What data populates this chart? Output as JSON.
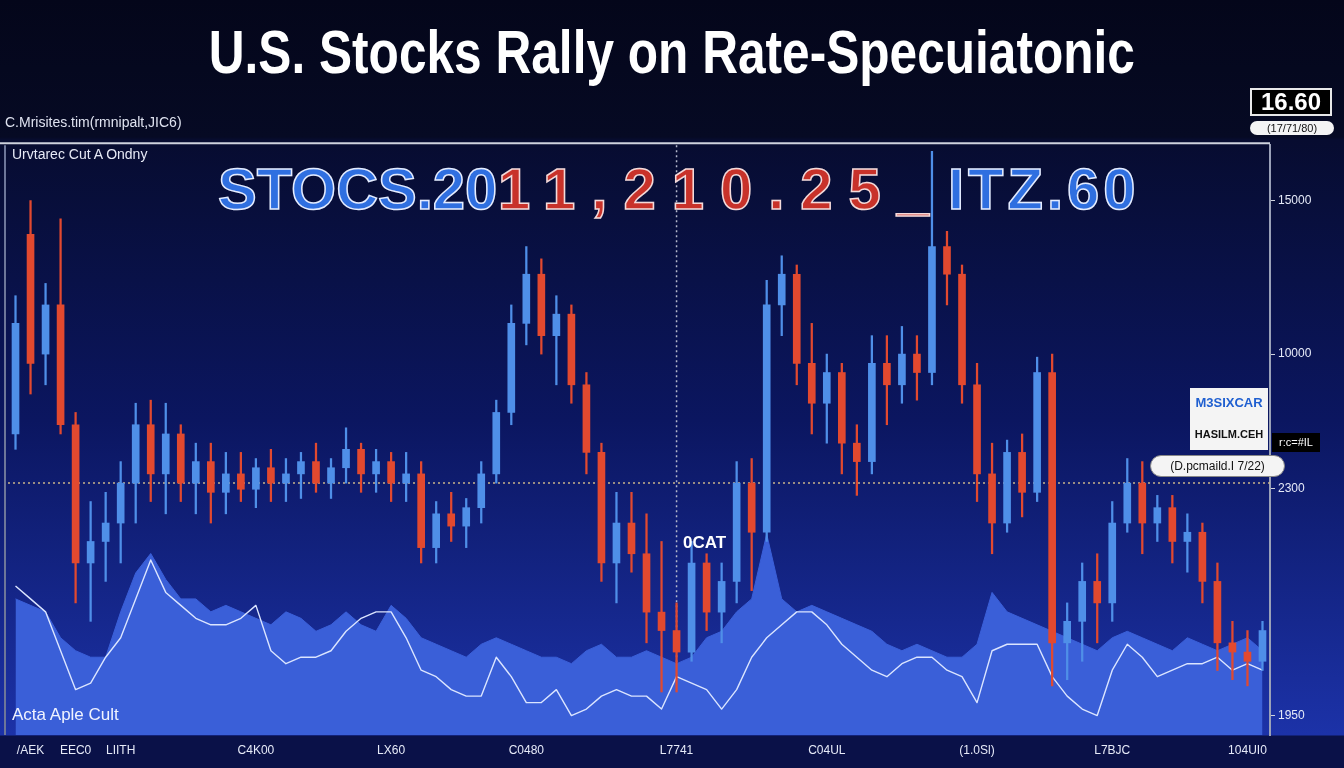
{
  "chart_data": {
    "type": "candlestick",
    "title": "U.S. Stocks Rally on Rate-Specuiatonic",
    "subtitle": "C.Mrisites.tim(rmnipalt,JIC6)",
    "annotations": [
      "16.60",
      "(17/71/80)",
      "Urvtarec Cut A Ondny",
      "STOCS.20",
      "11,210.25_",
      "ITZ.60",
      "0CAT",
      "Acta Aple Cult",
      "r:c=#IL",
      "M3SIXCAR",
      "HASILM.CEH",
      "(D.pcmaild.I 7/22)"
    ],
    "categories": [
      null,
      "/AEK",
      null,
      null,
      "EEC0",
      null,
      null,
      "LIITH",
      null,
      null,
      null,
      null,
      null,
      null,
      null,
      null,
      "C4K00",
      null,
      null,
      null,
      null,
      null,
      null,
      null,
      null,
      "LX60",
      null,
      null,
      null,
      null,
      null,
      null,
      null,
      null,
      "C0480",
      null,
      null,
      null,
      null,
      null,
      null,
      null,
      null,
      null,
      "L7741",
      null,
      null,
      null,
      null,
      null,
      null,
      null,
      null,
      null,
      "C04UL",
      null,
      null,
      null,
      null,
      null,
      null,
      null,
      null,
      null,
      "(1.0Sl)",
      null,
      null,
      null,
      null,
      null,
      null,
      null,
      null,
      "L7BJC",
      null,
      null,
      null,
      null,
      null,
      null,
      null,
      null,
      "104UI0",
      null
    ],
    "ohlc": [
      [
        7400,
        11900,
        6900,
        11000
      ],
      [
        13900,
        15000,
        8700,
        9700
      ],
      [
        10000,
        12300,
        9000,
        11600
      ],
      [
        11600,
        14400,
        7400,
        7700
      ],
      [
        7700,
        8100,
        1900,
        3200
      ],
      [
        3200,
        5200,
        1300,
        3900
      ],
      [
        3900,
        5500,
        2600,
        4500
      ],
      [
        4500,
        6500,
        3200,
        5800
      ],
      [
        5800,
        8400,
        4500,
        7700
      ],
      [
        7700,
        8500,
        5200,
        6100
      ],
      [
        6100,
        8400,
        4800,
        7400
      ],
      [
        7400,
        7700,
        5200,
        5800
      ],
      [
        5800,
        7100,
        4800,
        6500
      ],
      [
        6500,
        7100,
        4500,
        5500
      ],
      [
        5500,
        6800,
        4800,
        6100
      ],
      [
        6100,
        6800,
        5200,
        5600
      ],
      [
        5600,
        6600,
        5000,
        6300
      ],
      [
        6300,
        6900,
        5200,
        5800
      ],
      [
        5800,
        6600,
        5200,
        6100
      ],
      [
        6100,
        6800,
        5300,
        6500
      ],
      [
        6500,
        7100,
        5500,
        5800
      ],
      [
        5800,
        6600,
        5300,
        6300
      ],
      [
        6300,
        7600,
        5800,
        6900
      ],
      [
        6900,
        7100,
        5500,
        6100
      ],
      [
        6100,
        6900,
        5500,
        6500
      ],
      [
        6500,
        6800,
        5200,
        5800
      ],
      [
        5800,
        6800,
        5200,
        6100
      ],
      [
        6100,
        6500,
        3200,
        3700
      ],
      [
        3700,
        5200,
        3200,
        4800
      ],
      [
        4800,
        5500,
        3900,
        4400
      ],
      [
        4400,
        5300,
        3700,
        5000
      ],
      [
        5000,
        6500,
        4500,
        6100
      ],
      [
        6100,
        8500,
        5800,
        8100
      ],
      [
        8100,
        11600,
        7700,
        11000
      ],
      [
        11000,
        13500,
        10300,
        12600
      ],
      [
        12600,
        13100,
        10000,
        10600
      ],
      [
        10600,
        11900,
        9000,
        11300
      ],
      [
        11300,
        11600,
        8400,
        9000
      ],
      [
        9000,
        9400,
        6100,
        6800
      ],
      [
        6800,
        7100,
        2600,
        3200
      ],
      [
        3200,
        5500,
        1900,
        4500
      ],
      [
        4500,
        5500,
        2900,
        3500
      ],
      [
        3500,
        4800,
        600,
        1600
      ],
      [
        1600,
        3900,
        -1000,
        1000
      ],
      [
        1000,
        1900,
        -1000,
        300
      ],
      [
        300,
        3900,
        0,
        3200
      ],
      [
        3200,
        3500,
        1000,
        1600
      ],
      [
        1600,
        3200,
        600,
        2600
      ],
      [
        2600,
        6500,
        1900,
        5800
      ],
      [
        5800,
        6600,
        2300,
        4200
      ],
      [
        4200,
        12400,
        3900,
        11600
      ],
      [
        11600,
        13200,
        10600,
        12600
      ],
      [
        12600,
        12900,
        9000,
        9700
      ],
      [
        9700,
        11000,
        7400,
        8400
      ],
      [
        8400,
        10000,
        7100,
        9400
      ],
      [
        9400,
        9700,
        6100,
        7100
      ],
      [
        7100,
        7700,
        5400,
        6500
      ],
      [
        6500,
        10600,
        6100,
        9700
      ],
      [
        9700,
        10600,
        7700,
        9000
      ],
      [
        9000,
        10900,
        8400,
        10000
      ],
      [
        10000,
        10600,
        8500,
        9400
      ],
      [
        9400,
        16600,
        9000,
        13500
      ],
      [
        13500,
        14000,
        11600,
        12600
      ],
      [
        12600,
        12900,
        8400,
        9000
      ],
      [
        9000,
        9700,
        5200,
        6100
      ],
      [
        6100,
        7100,
        3500,
        4500
      ],
      [
        4500,
        7200,
        4200,
        6800
      ],
      [
        6800,
        7400,
        4700,
        5500
      ],
      [
        5500,
        9900,
        5200,
        9400
      ],
      [
        9400,
        10000,
        -800,
        600
      ],
      [
        600,
        1900,
        -600,
        1300
      ],
      [
        1300,
        3200,
        0,
        2600
      ],
      [
        2600,
        3500,
        600,
        1900
      ],
      [
        1900,
        5200,
        1300,
        4500
      ],
      [
        4500,
        6600,
        4200,
        5800
      ],
      [
        5800,
        6500,
        3500,
        4500
      ],
      [
        4500,
        5400,
        3900,
        5000
      ],
      [
        5000,
        5400,
        3200,
        3900
      ],
      [
        3900,
        4800,
        2900,
        4200
      ],
      [
        4200,
        4500,
        1900,
        2600
      ],
      [
        2600,
        3200,
        -300,
        600
      ],
      [
        600,
        1300,
        -600,
        300
      ],
      [
        300,
        1000,
        -800,
        0
      ],
      [
        0,
        1300,
        -300,
        1000
      ]
    ],
    "colors": [
      "#4f8fe8",
      "#e2492f",
      "#4f8fe8",
      "#e2492f",
      "#e2492f",
      "#4f8fe8",
      "#4f8fe8",
      "#4f8fe8",
      "#4f8fe8",
      "#e2492f",
      "#4f8fe8",
      "#e2492f",
      "#4f8fe8",
      "#e2492f",
      "#4f8fe8",
      "#e2492f",
      "#4f8fe8",
      "#e2492f",
      "#4f8fe8",
      "#4f8fe8",
      "#e2492f",
      "#4f8fe8",
      "#4f8fe8",
      "#e2492f",
      "#4f8fe8",
      "#e2492f",
      "#4f8fe8",
      "#e2492f",
      "#4f8fe8",
      "#e2492f",
      "#4f8fe8",
      "#4f8fe8",
      "#4f8fe8",
      "#4f8fe8",
      "#4f8fe8",
      "#e2492f",
      "#4f8fe8",
      "#e2492f",
      "#e2492f",
      "#e2492f",
      "#4f8fe8",
      "#e2492f",
      "#e2492f",
      "#e2492f",
      "#e2492f",
      "#4f8fe8",
      "#e2492f",
      "#4f8fe8",
      "#4f8fe8",
      "#e2492f",
      "#4f8fe8",
      "#4f8fe8",
      "#e2492f",
      "#e2492f",
      "#4f8fe8",
      "#e2492f",
      "#e2492f",
      "#4f8fe8",
      "#e2492f",
      "#4f8fe8",
      "#e2492f",
      "#4f8fe8",
      "#e2492f",
      "#e2492f",
      "#e2492f",
      "#e2492f",
      "#4f8fe8",
      "#e2492f",
      "#4f8fe8",
      "#e2492f",
      "#4f8fe8",
      "#4f8fe8",
      "#e2492f",
      "#4f8fe8",
      "#4f8fe8",
      "#e2492f",
      "#4f8fe8",
      "#e2492f",
      "#4f8fe8",
      "#e2492f",
      "#e2492f",
      "#e2492f",
      "#e2492f",
      "#4f8fe8"
    ],
    "series": [
      {
        "type": "area",
        "axis": "y2",
        "color": "#3a5fd8",
        "values": [
          2130,
          2120,
          2110,
          2070,
          2050,
          2040,
          2040,
          2110,
          2170,
          2200,
          2160,
          2130,
          2130,
          2110,
          2120,
          2110,
          2100,
          2090,
          2110,
          2100,
          2080,
          2090,
          2110,
          2090,
          2080,
          2120,
          2100,
          2070,
          2060,
          2050,
          2040,
          2060,
          2070,
          2060,
          2050,
          2040,
          2040,
          2030,
          2050,
          2060,
          2040,
          2040,
          2050,
          2040,
          2030,
          2040,
          2070,
          2080,
          2110,
          2130,
          2230,
          2130,
          2110,
          2120,
          2110,
          2100,
          2090,
          2080,
          2060,
          2050,
          2060,
          2050,
          2040,
          2040,
          2060,
          2140,
          2110,
          2100,
          2090,
          2080,
          2070,
          2060,
          2050,
          2070,
          2080,
          2070,
          2060,
          2050,
          2070,
          2060,
          2050,
          2060,
          2070,
          2050
        ]
      },
      {
        "type": "line",
        "axis": "y2",
        "color": "#dbe5ff",
        "values": [
          2150,
          2130,
          2110,
          2050,
          1990,
          2000,
          2040,
          2070,
          2130,
          2190,
          2140,
          2120,
          2100,
          2090,
          2090,
          2100,
          2120,
          2050,
          2030,
          2040,
          2040,
          2050,
          2080,
          2100,
          2110,
          2110,
          2070,
          2020,
          2010,
          1990,
          1980,
          1980,
          2040,
          2010,
          1970,
          1970,
          1990,
          1950,
          1960,
          1980,
          1990,
          1980,
          1980,
          1960,
          2010,
          2000,
          1990,
          1960,
          1990,
          2040,
          2070,
          2090,
          2110,
          2110,
          2090,
          2060,
          2040,
          2020,
          2010,
          2030,
          2040,
          2040,
          2020,
          2010,
          1970,
          2050,
          2060,
          2060,
          2060,
          2010,
          1980,
          1960,
          1950,
          2020,
          2060,
          2040,
          2010,
          2020,
          2030,
          2030,
          2040,
          2020,
          2030,
          2020
        ]
      }
    ],
    "ylim": [
      -2400,
      16800
    ],
    "yticks": [
      15000,
      10000
    ],
    "y2lim": [
      1920,
      2830
    ],
    "y2ticks": [
      2300,
      1950
    ],
    "ref_lines": [
      {
        "axis": "y",
        "value": 5800,
        "color": "#c9b48a",
        "line_style": "dotted"
      },
      {
        "axis": "x",
        "value": "L7741",
        "color": "#b4b8cc",
        "line_style": "dotted"
      }
    ]
  }
}
